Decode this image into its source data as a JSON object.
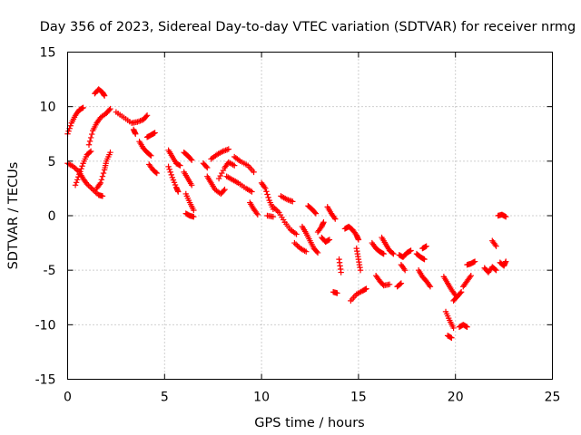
{
  "chart_data": {
    "type": "scatter",
    "title": "Day 356 of 2023, Sidereal Day-to-day VTEC variation (SDTVAR) for receiver nrmg",
    "xlabel": "GPS time / hours",
    "ylabel": "SDTVAR / TECUs",
    "xlim": [
      0,
      25
    ],
    "ylim": [
      -15,
      15
    ],
    "xticks": [
      0,
      5,
      10,
      15,
      20,
      25
    ],
    "yticks": [
      -15,
      -10,
      -5,
      0,
      5,
      10,
      15
    ],
    "grid": true,
    "marker": "+",
    "color": "#ff0000",
    "series": [
      {
        "name": "nrmg",
        "segments": [
          [
            [
              0.0,
              7.5
            ],
            [
              0.2,
              8.5
            ],
            [
              0.4,
              9.2
            ],
            [
              0.6,
              9.7
            ],
            [
              0.8,
              9.9
            ]
          ],
          [
            [
              0.0,
              4.8
            ],
            [
              0.3,
              4.5
            ],
            [
              0.6,
              4.0
            ],
            [
              0.8,
              3.4
            ],
            [
              1.0,
              2.9
            ],
            [
              1.3,
              2.4
            ],
            [
              1.6,
              1.9
            ],
            [
              1.8,
              1.8
            ]
          ],
          [
            [
              0.4,
              2.8
            ],
            [
              0.6,
              3.8
            ],
            [
              0.8,
              4.8
            ],
            [
              1.0,
              5.6
            ],
            [
              1.2,
              5.9
            ]
          ],
          [
            [
              1.1,
              6.5
            ],
            [
              1.3,
              7.8
            ],
            [
              1.5,
              8.5
            ],
            [
              1.7,
              9.0
            ],
            [
              2.0,
              9.4
            ],
            [
              2.2,
              9.8
            ]
          ],
          [
            [
              1.4,
              11.2
            ],
            [
              1.6,
              11.6
            ],
            [
              1.8,
              11.3
            ],
            [
              1.9,
              11.0
            ]
          ],
          [
            [
              1.5,
              2.5
            ],
            [
              1.7,
              3.0
            ],
            [
              1.9,
              4.2
            ],
            [
              2.0,
              5.0
            ],
            [
              2.2,
              5.8
            ]
          ],
          [
            [
              2.5,
              9.5
            ],
            [
              2.9,
              9.0
            ],
            [
              3.3,
              8.5
            ],
            [
              3.6,
              8.6
            ],
            [
              3.9,
              8.8
            ],
            [
              4.1,
              9.2
            ]
          ],
          [
            [
              3.4,
              7.9
            ],
            [
              3.5,
              7.5
            ]
          ],
          [
            [
              3.7,
              6.8
            ],
            [
              3.9,
              6.2
            ],
            [
              4.1,
              5.8
            ],
            [
              4.3,
              5.5
            ]
          ],
          [
            [
              4.1,
              7.2
            ],
            [
              4.3,
              7.4
            ],
            [
              4.5,
              7.6
            ]
          ],
          [
            [
              4.2,
              4.7
            ],
            [
              4.4,
              4.2
            ],
            [
              4.6,
              3.9
            ]
          ],
          [
            [
              5.2,
              6.0
            ],
            [
              5.4,
              5.4
            ],
            [
              5.6,
              4.8
            ],
            [
              5.8,
              4.6
            ]
          ],
          [
            [
              5.2,
              4.5
            ],
            [
              5.4,
              3.5
            ],
            [
              5.6,
              2.6
            ],
            [
              5.7,
              2.2
            ]
          ],
          [
            [
              6.0,
              5.8
            ],
            [
              6.2,
              5.5
            ],
            [
              6.4,
              5.1
            ]
          ],
          [
            [
              6.0,
              4.0
            ],
            [
              6.2,
              3.4
            ],
            [
              6.4,
              2.8
            ]
          ],
          [
            [
              6.1,
              2.0
            ],
            [
              6.3,
              1.2
            ],
            [
              6.5,
              0.5
            ]
          ],
          [
            [
              6.1,
              0.2
            ],
            [
              6.3,
              0.0
            ],
            [
              6.5,
              -0.1
            ]
          ],
          [
            [
              7.0,
              4.8
            ],
            [
              7.2,
              4.4
            ]
          ],
          [
            [
              7.2,
              3.6
            ],
            [
              7.4,
              3.0
            ],
            [
              7.6,
              2.4
            ],
            [
              7.9,
              2.0
            ],
            [
              8.1,
              2.4
            ]
          ],
          [
            [
              7.4,
              5.2
            ],
            [
              7.7,
              5.6
            ],
            [
              8.0,
              5.9
            ],
            [
              8.3,
              6.1
            ]
          ],
          [
            [
              7.8,
              3.4
            ],
            [
              8.1,
              4.4
            ],
            [
              8.3,
              4.9
            ],
            [
              8.6,
              4.6
            ]
          ],
          [
            [
              8.2,
              3.6
            ],
            [
              8.5,
              3.3
            ],
            [
              8.8,
              3.0
            ],
            [
              9.2,
              2.5
            ],
            [
              9.5,
              2.2
            ]
          ],
          [
            [
              8.6,
              5.4
            ],
            [
              8.9,
              5.0
            ],
            [
              9.3,
              4.6
            ],
            [
              9.6,
              4.0
            ]
          ],
          [
            [
              9.4,
              1.2
            ],
            [
              9.6,
              0.6
            ],
            [
              9.8,
              0.1
            ]
          ],
          [
            [
              10.0,
              3.0
            ],
            [
              10.2,
              2.5
            ],
            [
              10.4,
              1.4
            ],
            [
              10.6,
              0.6
            ]
          ],
          [
            [
              10.3,
              0.0
            ],
            [
              10.6,
              -0.1
            ]
          ],
          [
            [
              10.6,
              0.8
            ],
            [
              10.9,
              0.3
            ],
            [
              11.2,
              -0.6
            ],
            [
              11.5,
              -1.3
            ],
            [
              11.8,
              -1.7
            ]
          ],
          [
            [
              11.0,
              1.8
            ],
            [
              11.3,
              1.5
            ],
            [
              11.6,
              1.3
            ]
          ],
          [
            [
              11.7,
              -2.5
            ],
            [
              12.0,
              -3.0
            ],
            [
              12.3,
              -3.3
            ]
          ],
          [
            [
              12.1,
              -1.0
            ],
            [
              12.3,
              -1.6
            ],
            [
              12.5,
              -2.3
            ],
            [
              12.7,
              -3.0
            ],
            [
              12.9,
              -3.4
            ]
          ],
          [
            [
              12.4,
              0.9
            ],
            [
              12.6,
              0.6
            ],
            [
              12.8,
              0.2
            ]
          ],
          [
            [
              12.9,
              -1.5
            ],
            [
              13.1,
              -1.0
            ],
            [
              13.2,
              -0.6
            ]
          ],
          [
            [
              13.1,
              -2.0
            ],
            [
              13.3,
              -2.4
            ],
            [
              13.5,
              -2.2
            ]
          ],
          [
            [
              13.4,
              0.8
            ],
            [
              13.6,
              0.2
            ],
            [
              13.8,
              -0.3
            ]
          ],
          [
            [
              13.7,
              -7.0
            ],
            [
              13.9,
              -7.1
            ]
          ],
          [
            [
              14.0,
              -4.0
            ],
            [
              14.1,
              -5.2
            ]
          ],
          [
            [
              14.3,
              -1.2
            ],
            [
              14.5,
              -1.0
            ],
            [
              14.7,
              -1.3
            ],
            [
              14.9,
              -1.8
            ],
            [
              15.0,
              -2.2
            ]
          ],
          [
            [
              14.6,
              -7.8
            ],
            [
              14.9,
              -7.2
            ],
            [
              15.2,
              -6.9
            ],
            [
              15.4,
              -6.7
            ]
          ],
          [
            [
              14.9,
              -3.0
            ],
            [
              15.0,
              -4.0
            ],
            [
              15.1,
              -5.0
            ]
          ],
          [
            [
              15.7,
              -2.5
            ],
            [
              15.9,
              -3.0
            ],
            [
              16.1,
              -3.3
            ],
            [
              16.3,
              -3.5
            ]
          ],
          [
            [
              15.9,
              -5.5
            ],
            [
              16.1,
              -6.0
            ],
            [
              16.3,
              -6.4
            ],
            [
              16.6,
              -6.3
            ]
          ],
          [
            [
              16.2,
              -2.0
            ],
            [
              16.4,
              -2.6
            ],
            [
              16.6,
              -3.2
            ],
            [
              16.8,
              -3.5
            ]
          ],
          [
            [
              17.0,
              -6.5
            ],
            [
              17.2,
              -6.2
            ]
          ],
          [
            [
              17.1,
              -3.6
            ],
            [
              17.3,
              -3.8
            ],
            [
              17.5,
              -3.4
            ],
            [
              17.7,
              -3.2
            ]
          ],
          [
            [
              17.2,
              -4.5
            ],
            [
              17.4,
              -5.0
            ]
          ],
          [
            [
              18.0,
              -3.5
            ],
            [
              18.2,
              -3.8
            ],
            [
              18.4,
              -4.0
            ]
          ],
          [
            [
              18.1,
              -5.0
            ],
            [
              18.3,
              -5.6
            ],
            [
              18.5,
              -6.0
            ],
            [
              18.7,
              -6.5
            ]
          ],
          [
            [
              18.3,
              -3.0
            ],
            [
              18.5,
              -2.8
            ]
          ],
          [
            [
              19.4,
              -5.6
            ],
            [
              19.6,
              -6.2
            ],
            [
              19.8,
              -6.8
            ],
            [
              20.0,
              -7.3
            ]
          ],
          [
            [
              19.5,
              -8.8
            ],
            [
              19.7,
              -9.6
            ],
            [
              19.9,
              -10.3
            ]
          ],
          [
            [
              19.6,
              -11.0
            ],
            [
              19.8,
              -11.2
            ]
          ],
          [
            [
              19.9,
              -7.8
            ],
            [
              20.1,
              -7.4
            ],
            [
              20.3,
              -7.0
            ]
          ],
          [
            [
              20.2,
              -10.2
            ],
            [
              20.4,
              -10.0
            ],
            [
              20.6,
              -10.2
            ]
          ],
          [
            [
              20.4,
              -6.5
            ],
            [
              20.6,
              -6.0
            ],
            [
              20.8,
              -5.5
            ]
          ],
          [
            [
              20.6,
              -4.5
            ],
            [
              20.8,
              -4.4
            ],
            [
              21.0,
              -4.2
            ]
          ],
          [
            [
              21.5,
              -4.8
            ],
            [
              21.7,
              -5.2
            ],
            [
              21.9,
              -4.7
            ],
            [
              22.1,
              -5.0
            ]
          ],
          [
            [
              21.9,
              -2.3
            ],
            [
              22.1,
              -2.8
            ]
          ],
          [
            [
              22.2,
              0.0
            ],
            [
              22.4,
              0.1
            ],
            [
              22.6,
              -0.1
            ]
          ],
          [
            [
              22.3,
              -4.3
            ],
            [
              22.5,
              -4.6
            ],
            [
              22.6,
              -4.2
            ]
          ]
        ]
      }
    ]
  }
}
